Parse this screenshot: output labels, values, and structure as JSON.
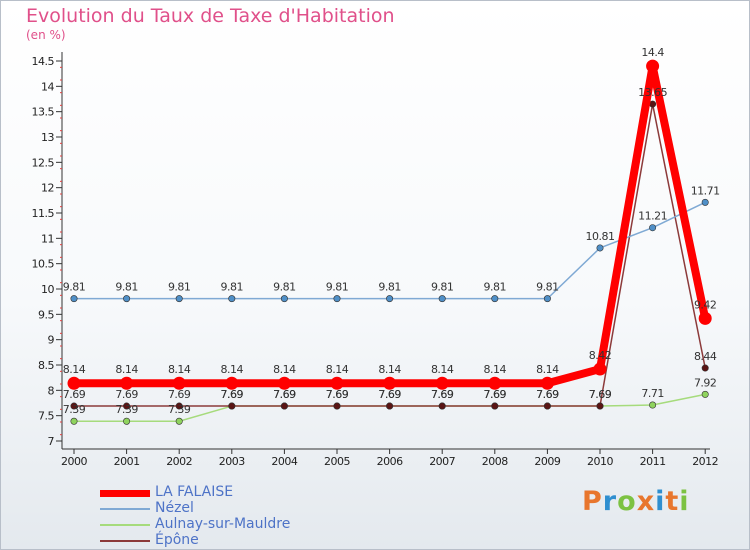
{
  "chart_data": {
    "type": "line",
    "title": "Evolution du Taux de Taxe d'Habitation",
    "ylabel": "(en %)",
    "xlabel": "",
    "ylim": [
      7,
      14.5
    ],
    "yticks": [
      "7",
      "7.5",
      "8",
      "8.5",
      "9",
      "9.5",
      "10",
      "10.5",
      "11",
      "11.5",
      "12",
      "12.5",
      "13",
      "13.5",
      "14",
      "14.5"
    ],
    "categories": [
      "2000",
      "2001",
      "2002",
      "2003",
      "2004",
      "2005",
      "2006",
      "2007",
      "2008",
      "2009",
      "2010",
      "2011",
      "2012"
    ],
    "series": [
      {
        "name": "LA FALAISE",
        "color": "#ff0000",
        "marker_color": "#ff0000",
        "values": [
          8.14,
          8.14,
          8.14,
          8.14,
          8.14,
          8.14,
          8.14,
          8.14,
          8.14,
          8.14,
          8.42,
          14.4,
          9.42
        ],
        "labels": [
          "8.14",
          "8.14",
          "8.14",
          "8.14",
          "8.14",
          "8.14",
          "8.14",
          "8.14",
          "8.14",
          "8.14",
          "8.42",
          "14.4",
          "9.42"
        ]
      },
      {
        "name": "Nézel",
        "color": "#7fa9d4",
        "marker_color": "#4f8fc7",
        "values": [
          9.81,
          9.81,
          9.81,
          9.81,
          9.81,
          9.81,
          9.81,
          9.81,
          9.81,
          9.81,
          10.81,
          11.21,
          11.71
        ],
        "labels": [
          "9.81",
          "9.81",
          "9.81",
          "9.81",
          "9.81",
          "9.81",
          "9.81",
          "9.81",
          "9.81",
          "9.81",
          "10.81",
          "11.21",
          "11.71"
        ]
      },
      {
        "name": "Aulnay-sur-Mauldre",
        "color": "#a6db7c",
        "marker_color": "#8fd35e",
        "values": [
          7.39,
          7.39,
          7.39,
          7.69,
          7.69,
          7.69,
          7.69,
          7.69,
          7.69,
          7.69,
          7.69,
          7.71,
          7.92
        ],
        "labels": [
          "7.39",
          "7.39",
          "7.39",
          "7.69",
          "7.69",
          "7.69",
          "7.69",
          "7.69",
          "7.69",
          "7.69",
          "7.69",
          "7.71",
          "7.92"
        ]
      },
      {
        "name": "Épône",
        "color": "#8c3a3a",
        "marker_color": "#5a1414",
        "values": [
          7.69,
          7.69,
          7.69,
          7.69,
          7.69,
          7.69,
          7.69,
          7.69,
          7.69,
          7.69,
          7.69,
          13.65,
          8.44
        ],
        "labels": [
          "7.69",
          "7.69",
          "7.69",
          "7.69",
          "7.69",
          "7.69",
          "7.69",
          "7.69",
          "7.69",
          "7.69",
          "7.69",
          "13.65",
          "8.44"
        ]
      }
    ],
    "legend_position": "bottom-left",
    "grid": false
  },
  "logo": {
    "text": "Proxiti",
    "colors": [
      "#e8762d",
      "#2f8fd0",
      "#7cc242",
      "#e8762d",
      "#2f8fd0",
      "#e8762d",
      "#7cc242"
    ]
  }
}
